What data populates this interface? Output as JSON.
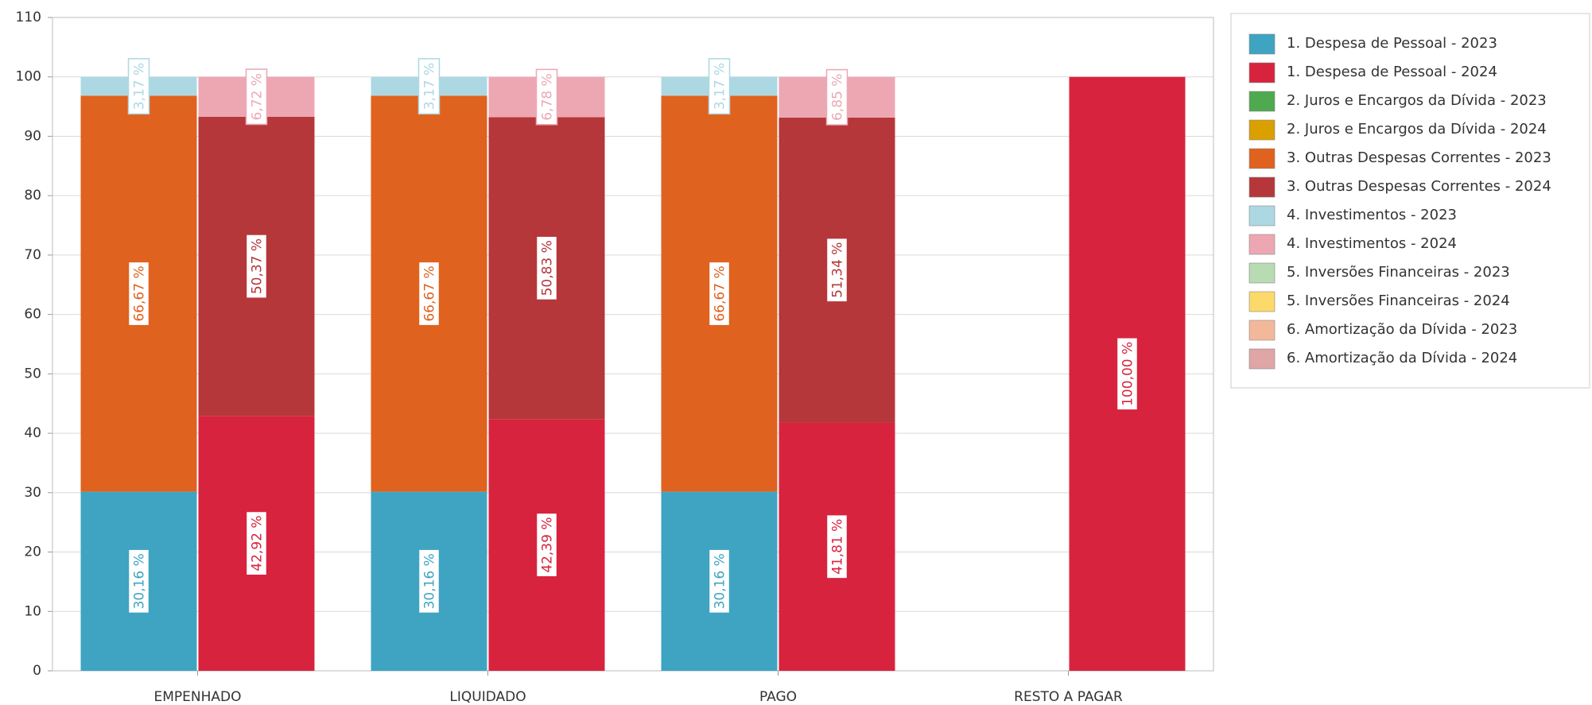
{
  "chart_data": {
    "type": "stacked_bar",
    "categories": [
      "EMPENHADO",
      "LIQUIDADO",
      "PAGO",
      "RESTO A PAGAR"
    ],
    "ylim": [
      0,
      110
    ],
    "yticks": [
      0,
      10,
      20,
      30,
      40,
      50,
      60,
      70,
      80,
      90,
      100,
      110
    ],
    "grid": true,
    "legend_position": "right",
    "series": [
      {
        "name": "1. Despesa de Pessoal - 2023",
        "color": "#3fa4c2",
        "values": [
          30.16,
          30.16,
          30.16,
          null
        ],
        "value_labels": [
          "30,16 %",
          "30,16 %",
          "30,16 %",
          null
        ]
      },
      {
        "name": "1. Despesa de Pessoal - 2024",
        "color": "#d8233f",
        "values": [
          42.92,
          42.39,
          41.81,
          100
        ],
        "value_labels": [
          "42,92 %",
          "42,39 %",
          "41,81 %",
          "100,00 %"
        ]
      },
      {
        "name": "2. Juros e Encargos da Dívida - 2023",
        "color": "#4fa94f",
        "values": [
          null,
          null,
          null,
          null
        ],
        "value_labels": [
          null,
          null,
          null,
          null
        ]
      },
      {
        "name": "2. Juros e Encargos da Dívida - 2024",
        "color": "#d9a000",
        "values": [
          null,
          null,
          null,
          null
        ],
        "value_labels": [
          null,
          null,
          null,
          null
        ]
      },
      {
        "name": "3. Outras Despesas Correntes - 2023",
        "color": "#e0621f",
        "values": [
          66.67,
          66.67,
          66.67,
          null
        ],
        "value_labels": [
          "66,67 %",
          "66,67 %",
          "66,67 %",
          null
        ]
      },
      {
        "name": "3. Outras Despesas Correntes - 2024",
        "color": "#b5373a",
        "values": [
          50.37,
          50.83,
          51.34,
          null
        ],
        "value_labels": [
          "50,37 %",
          "50,83 %",
          "51,34 %",
          null
        ]
      },
      {
        "name": "4. Investimentos - 2023",
        "color": "#acd8e3",
        "values": [
          3.17,
          3.17,
          3.17,
          null
        ],
        "value_labels": [
          "3,17 %",
          "3,17 %",
          "3,17 %",
          null
        ]
      },
      {
        "name": "4. Investimentos - 2024",
        "color": "#eda7b3",
        "values": [
          6.72,
          6.78,
          6.85,
          null
        ],
        "value_labels": [
          "6,72 %",
          "6,78 %",
          "6,85 %",
          null
        ]
      },
      {
        "name": "5. Inversões Financeiras - 2023",
        "color": "#b7dbb3",
        "values": [
          null,
          null,
          null,
          null
        ],
        "value_labels": [
          null,
          null,
          null,
          null
        ]
      },
      {
        "name": "5. Inversões Financeiras - 2024",
        "color": "#fcd96b",
        "values": [
          null,
          null,
          null,
          null
        ],
        "value_labels": [
          null,
          null,
          null,
          null
        ]
      },
      {
        "name": "6. Amortização da Dívida - 2023",
        "color": "#f3b89a",
        "values": [
          null,
          null,
          null,
          null
        ],
        "value_labels": [
          null,
          null,
          null,
          null
        ]
      },
      {
        "name": "6. Amortização da Dívida - 2024",
        "color": "#e0a5a5",
        "values": [
          null,
          null,
          null,
          null
        ],
        "value_labels": [
          null,
          null,
          null,
          null
        ]
      }
    ]
  }
}
